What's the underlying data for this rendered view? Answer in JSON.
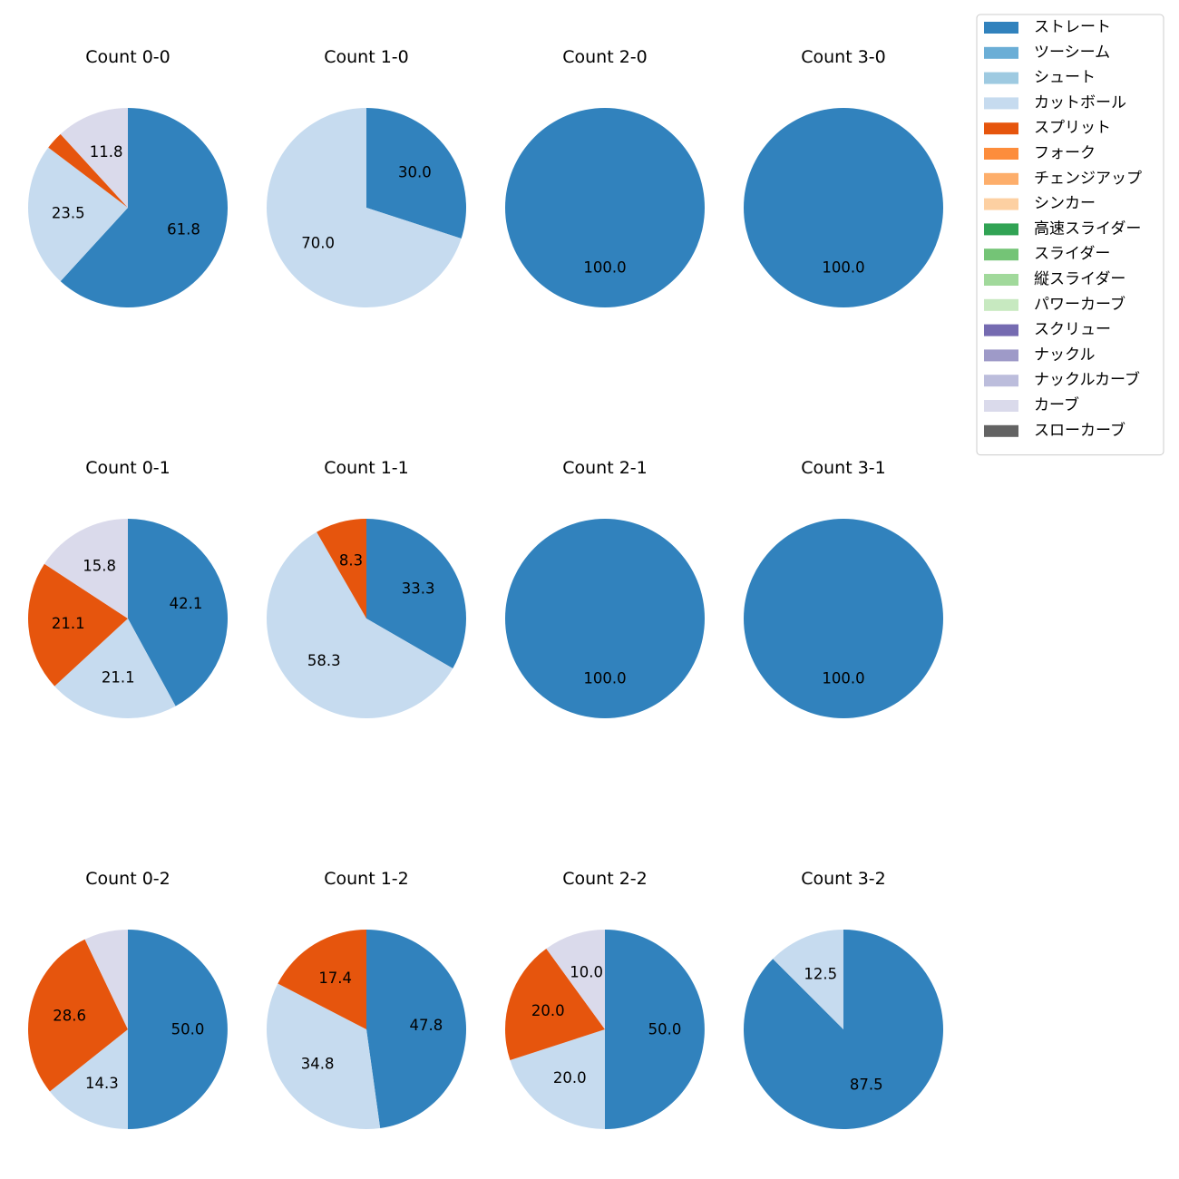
{
  "chart_data": {
    "type": "pie",
    "legend": {
      "placement": "top-right",
      "entries": [
        {
          "label": "ストレート",
          "color": "#3182bd"
        },
        {
          "label": "ツーシーム",
          "color": "#6baed6"
        },
        {
          "label": "シュート",
          "color": "#9ecae1"
        },
        {
          "label": "カットボール",
          "color": "#c6dbef"
        },
        {
          "label": "スプリット",
          "color": "#e6550d"
        },
        {
          "label": "フォーク",
          "color": "#fd8d3c"
        },
        {
          "label": "チェンジアップ",
          "color": "#fdae6b"
        },
        {
          "label": "シンカー",
          "color": "#fdd0a2"
        },
        {
          "label": "高速スライダー",
          "color": "#31a354"
        },
        {
          "label": "スライダー",
          "color": "#74c476"
        },
        {
          "label": "縦スライダー",
          "color": "#a1d99b"
        },
        {
          "label": "パワーカーブ",
          "color": "#c7e9c0"
        },
        {
          "label": "スクリュー",
          "color": "#756bb1"
        },
        {
          "label": "ナックル",
          "color": "#9e9ac8"
        },
        {
          "label": "ナックルカーブ",
          "color": "#bcbddc"
        },
        {
          "label": "カーブ",
          "color": "#dadaeb"
        },
        {
          "label": "スローカーブ",
          "color": "#636363"
        }
      ]
    },
    "charts": [
      {
        "title": "Count 0-0",
        "slices": [
          {
            "pitch": "ストレート",
            "value": 61.8,
            "label": "61.8"
          },
          {
            "pitch": "カットボール",
            "value": 23.5,
            "label": "23.5"
          },
          {
            "pitch": "スプリット",
            "value": 2.9,
            "label": ""
          },
          {
            "pitch": "カーブ",
            "value": 11.8,
            "label": "11.8"
          }
        ]
      },
      {
        "title": "Count 1-0",
        "slices": [
          {
            "pitch": "ストレート",
            "value": 30.0,
            "label": "30.0"
          },
          {
            "pitch": "カットボール",
            "value": 70.0,
            "label": "70.0"
          }
        ]
      },
      {
        "title": "Count 2-0",
        "slices": [
          {
            "pitch": "ストレート",
            "value": 100.0,
            "label": "100.0"
          }
        ]
      },
      {
        "title": "Count 3-0",
        "slices": [
          {
            "pitch": "ストレート",
            "value": 100.0,
            "label": "100.0"
          }
        ]
      },
      {
        "title": "Count 0-1",
        "slices": [
          {
            "pitch": "ストレート",
            "value": 42.1,
            "label": "42.1"
          },
          {
            "pitch": "カットボール",
            "value": 21.1,
            "label": "21.1"
          },
          {
            "pitch": "スプリット",
            "value": 21.1,
            "label": "21.1"
          },
          {
            "pitch": "カーブ",
            "value": 15.8,
            "label": "15.8"
          }
        ]
      },
      {
        "title": "Count 1-1",
        "slices": [
          {
            "pitch": "ストレート",
            "value": 33.3,
            "label": "33.3"
          },
          {
            "pitch": "カットボール",
            "value": 58.3,
            "label": "58.3"
          },
          {
            "pitch": "スプリット",
            "value": 8.3,
            "label": "8.3"
          }
        ]
      },
      {
        "title": "Count 2-1",
        "slices": [
          {
            "pitch": "ストレート",
            "value": 100.0,
            "label": "100.0"
          }
        ]
      },
      {
        "title": "Count 3-1",
        "slices": [
          {
            "pitch": "ストレート",
            "value": 100.0,
            "label": "100.0"
          }
        ]
      },
      {
        "title": "Count 0-2",
        "slices": [
          {
            "pitch": "ストレート",
            "value": 50.0,
            "label": "50.0"
          },
          {
            "pitch": "カットボール",
            "value": 14.3,
            "label": "14.3"
          },
          {
            "pitch": "スプリット",
            "value": 28.6,
            "label": "28.6"
          },
          {
            "pitch": "カーブ",
            "value": 7.1,
            "label": ""
          }
        ]
      },
      {
        "title": "Count 1-2",
        "slices": [
          {
            "pitch": "ストレート",
            "value": 47.8,
            "label": "47.8"
          },
          {
            "pitch": "カットボール",
            "value": 34.8,
            "label": "34.8"
          },
          {
            "pitch": "スプリット",
            "value": 17.4,
            "label": "17.4"
          }
        ]
      },
      {
        "title": "Count 2-2",
        "slices": [
          {
            "pitch": "ストレート",
            "value": 50.0,
            "label": "50.0"
          },
          {
            "pitch": "カットボール",
            "value": 20.0,
            "label": "20.0"
          },
          {
            "pitch": "スプリット",
            "value": 20.0,
            "label": "20.0"
          },
          {
            "pitch": "カーブ",
            "value": 10.0,
            "label": "10.0"
          }
        ]
      },
      {
        "title": "Count 3-2",
        "slices": [
          {
            "pitch": "ストレート",
            "value": 87.5,
            "label": "87.5"
          },
          {
            "pitch": "カットボール",
            "value": 12.5,
            "label": "12.5"
          }
        ]
      }
    ]
  }
}
